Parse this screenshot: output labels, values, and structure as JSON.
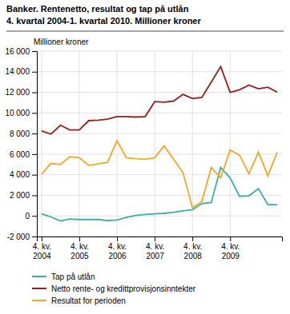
{
  "chart_data": {
    "type": "line",
    "title": "Banker. Rentenetto, resultat og tap på utlån",
    "subtitle": "4. kvartal 2004-1. kvartal 2010. Millioner kroner",
    "y_label": "Millioner kroner",
    "categories": [
      "4. kv.\n2004",
      null,
      null,
      null,
      "4. kv.\n2005",
      null,
      null,
      null,
      "4. kv.\n2006",
      null,
      null,
      null,
      "4. kv.\n2007",
      null,
      null,
      null,
      "4. kv.\n2008",
      null,
      null,
      null,
      "4. kv.\n2009",
      null,
      null,
      null,
      null,
      null
    ],
    "series": [
      {
        "name": "Netto rente- og kredittprovisjonsinntekter",
        "color": "#9B1C1C",
        "values": [
          8250,
          7950,
          8800,
          8350,
          8350,
          9250,
          9300,
          9400,
          9650,
          9650,
          9600,
          9650,
          11100,
          11050,
          11150,
          11800,
          11400,
          11500,
          13000,
          14500,
          12000,
          12250,
          12700,
          12350,
          12500,
          12000
        ]
      },
      {
        "name": "Tap på utlån",
        "color": "#3AADA8",
        "values": [
          200,
          -100,
          -500,
          -300,
          -350,
          -350,
          -350,
          -450,
          -400,
          -150,
          50,
          150,
          200,
          250,
          350,
          500,
          600,
          1200,
          1300,
          4700,
          3700,
          1900,
          1950,
          2650,
          1100,
          1100
        ]
      },
      {
        "name": "Resultat for perioden",
        "color": "#F5A623",
        "values": [
          4050,
          5100,
          5000,
          5750,
          5650,
          4900,
          5050,
          5200,
          7300,
          5650,
          5550,
          5500,
          5650,
          6800,
          5500,
          4200,
          800,
          1400,
          4700,
          3700,
          6400,
          5900,
          4100,
          6200,
          3900,
          6200
        ]
      }
    ],
    "ylim": [
      -2000,
      16000
    ],
    "yticks": [
      {
        "value": -2000,
        "label": "-2 000"
      },
      0,
      {
        "value": 2000,
        "label": "2 000"
      },
      {
        "value": 4000,
        "label": "4 000"
      },
      {
        "value": 6000,
        "label": "6 000"
      },
      {
        "value": 8000,
        "label": "8 000"
      },
      {
        "value": 10000,
        "label": "10 000"
      },
      {
        "value": 12000,
        "label": "12 000"
      },
      {
        "value": 14000,
        "label": "14 000"
      },
      {
        "value": 16000,
        "label": "16 000"
      }
    ],
    "grid": true,
    "legend": "bottom"
  }
}
